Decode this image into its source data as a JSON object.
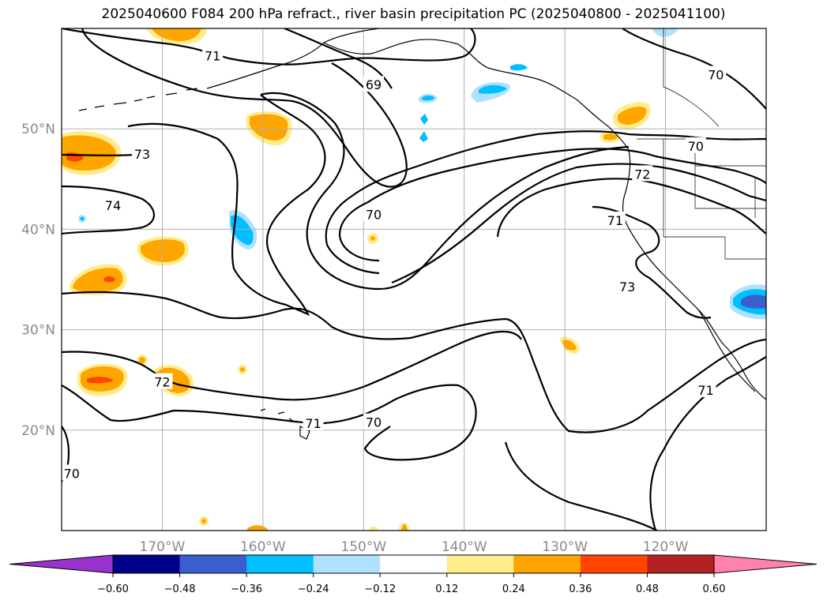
{
  "title": "2025040600 F084 200 hPa refract., river basin precipitation PC (2025040800 - 2025041100)",
  "map": {
    "projection": "PlateCarree",
    "lon_range": [
      -180,
      -110
    ],
    "lat_range": [
      10,
      60
    ],
    "lat_ticks": [
      {
        "value": 20,
        "label": "20°N"
      },
      {
        "value": 30,
        "label": "30°N"
      },
      {
        "value": 40,
        "label": "40°N"
      },
      {
        "value": 50,
        "label": "50°N"
      }
    ],
    "lon_ticks": [
      {
        "value": -170,
        "label": "170°W"
      },
      {
        "value": -160,
        "label": "160°W"
      },
      {
        "value": -150,
        "label": "150°W"
      },
      {
        "value": -140,
        "label": "140°W"
      },
      {
        "value": -130,
        "label": "130°W"
      },
      {
        "value": -120,
        "label": "120°W"
      }
    ],
    "grid": true,
    "coastline_color": "#000000"
  },
  "contour_labels": [
    {
      "text": "71",
      "lon": -165.0,
      "lat": 57.3
    },
    {
      "text": "69",
      "lon": -149.0,
      "lat": 54.4
    },
    {
      "text": "70",
      "lon": -115.0,
      "lat": 55.4
    },
    {
      "text": "73",
      "lon": -172.0,
      "lat": 47.5
    },
    {
      "text": "74",
      "lon": -174.9,
      "lat": 42.4
    },
    {
      "text": "70",
      "lon": -149.0,
      "lat": 41.5
    },
    {
      "text": "70",
      "lon": -117.0,
      "lat": 48.3
    },
    {
      "text": "72",
      "lon": -122.3,
      "lat": 45.5
    },
    {
      "text": "71",
      "lon": -125.0,
      "lat": 40.9
    },
    {
      "text": "73",
      "lon": -123.8,
      "lat": 34.3
    },
    {
      "text": "72",
      "lon": -170.0,
      "lat": 24.8
    },
    {
      "text": "71",
      "lon": -155.0,
      "lat": 20.7
    },
    {
      "text": "70",
      "lon": -149.0,
      "lat": 20.8
    },
    {
      "text": "71",
      "lon": -116.0,
      "lat": 24.0
    },
    {
      "text": "70",
      "lon": -179.0,
      "lat": 15.7
    }
  ],
  "colorbar": {
    "levels": [
      "-0.60",
      "-0.48",
      "-0.36",
      "-0.24",
      "-0.12",
      "0.12",
      "0.24",
      "0.36",
      "0.48",
      "0.60"
    ],
    "colors": [
      "#9932cc",
      "#00008b",
      "#3a5fcd",
      "#00bfff",
      "#b0e2ff",
      "#ffffff",
      "#ffec8b",
      "#ffa500",
      "#ff4500",
      "#b22222",
      "#ff82ab"
    ],
    "extend": "both"
  }
}
